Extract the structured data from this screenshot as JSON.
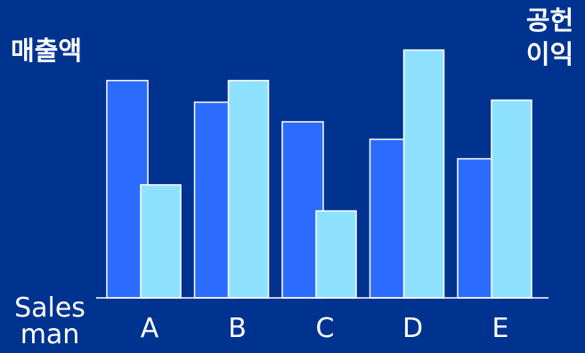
{
  "chart_data": {
    "type": "bar",
    "categories": [
      "A",
      "B",
      "C",
      "D",
      "E"
    ],
    "series": [
      {
        "name": "매출액",
        "color": "#2b6cff",
        "values": [
          100,
          90,
          81,
          73,
          64
        ]
      },
      {
        "name": "공헌이익",
        "color": "#8ee2ff",
        "values": [
          52,
          100,
          40,
          114,
          91
        ]
      }
    ],
    "left_title": "매출액",
    "right_title_lines": [
      "공헌",
      "이익"
    ],
    "xlabel": "Sales man",
    "ylim": [
      0,
      126
    ],
    "grid": false,
    "legend": "none"
  }
}
